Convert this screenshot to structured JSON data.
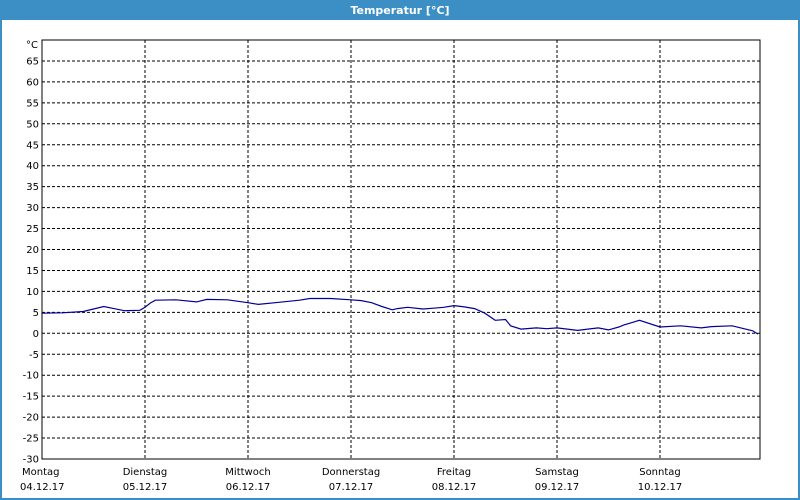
{
  "window": {
    "title": "Temperatur [°C]"
  },
  "chart_data": {
    "type": "line",
    "title": "Temperatur [°C]",
    "ylabel": "°C",
    "ylim": [
      -30,
      70
    ],
    "y_ticks": [
      -30,
      -25,
      -20,
      -15,
      -10,
      -5,
      0,
      5,
      10,
      15,
      20,
      25,
      30,
      35,
      40,
      45,
      50,
      55,
      60,
      65
    ],
    "x_range_days": [
      0,
      7
    ],
    "day_labels": [
      {
        "day": "Montag",
        "date": "04.12.17"
      },
      {
        "day": "Dienstag",
        "date": "05.12.17"
      },
      {
        "day": "Mittwoch",
        "date": "06.12.17"
      },
      {
        "day": "Donnerstag",
        "date": "07.12.17"
      },
      {
        "day": "Freitag",
        "date": "08.12.17"
      },
      {
        "day": "Samstag",
        "date": "09.12.17"
      },
      {
        "day": "Sonntag",
        "date": "10.12.17"
      }
    ],
    "grid": true,
    "line_color": "#000099",
    "series": [
      {
        "x": [
          0,
          0.2,
          0.4,
          0.6,
          0.68,
          0.8,
          0.95,
          1.0,
          1.05,
          1.1,
          1.3,
          1.5,
          1.6,
          1.8,
          2.0,
          2.1,
          2.3,
          2.5,
          2.6,
          2.8,
          3.0,
          3.1,
          3.2,
          3.3,
          3.4,
          3.45,
          3.55,
          3.7,
          3.8,
          3.9,
          4.0,
          4.1,
          4.2,
          4.3,
          4.4,
          4.5,
          4.55,
          4.65,
          4.8,
          4.9,
          5.0,
          5.2,
          5.4,
          5.5,
          5.6,
          5.65,
          5.8,
          6.0,
          6.2,
          6.4,
          6.5,
          6.7,
          6.9,
          6.95
        ],
        "values": [
          4.8,
          4.9,
          5.2,
          6.4,
          6.0,
          5.4,
          5.5,
          6.2,
          7.2,
          7.9,
          8.0,
          7.5,
          8.1,
          8.0,
          7.3,
          6.9,
          7.4,
          7.9,
          8.3,
          8.3,
          8.0,
          7.8,
          7.3,
          6.4,
          5.6,
          5.9,
          6.2,
          5.8,
          6.0,
          6.2,
          6.6,
          6.3,
          5.9,
          4.8,
          3.1,
          3.3,
          1.8,
          1.0,
          1.3,
          1.1,
          1.3,
          0.7,
          1.3,
          0.8,
          1.5,
          2.0,
          3.1,
          1.5,
          1.8,
          1.3,
          1.6,
          1.8,
          0.6,
          -0.2
        ]
      }
    ]
  }
}
